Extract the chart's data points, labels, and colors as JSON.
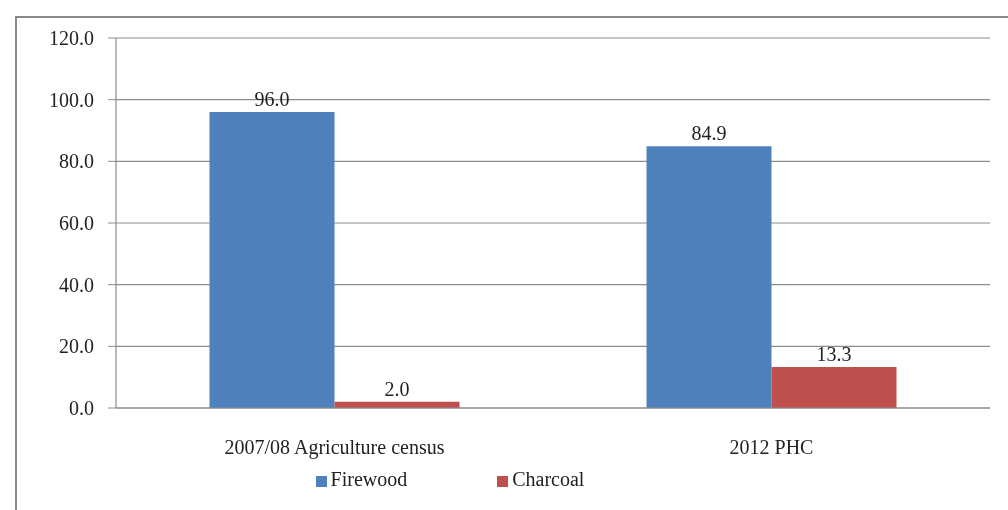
{
  "chart_data": {
    "type": "bar",
    "categories": [
      "2007/08 Agriculture census",
      "2012 PHC"
    ],
    "series": [
      {
        "name": "Firewood",
        "color": "#4f81bd",
        "values": [
          96.0,
          84.9
        ],
        "value_labels": [
          "96.0",
          "84.9"
        ]
      },
      {
        "name": "Charcoal",
        "color": "#c0504d",
        "values": [
          2.0,
          13.3
        ],
        "value_labels": [
          "2.0",
          "13.3"
        ]
      }
    ],
    "ylim": [
      0,
      120
    ],
    "yticks": [
      {
        "value": 0,
        "label": "0.0"
      },
      {
        "value": 20,
        "label": "20.0"
      },
      {
        "value": 40,
        "label": "40.0"
      },
      {
        "value": 60,
        "label": "60.0"
      },
      {
        "value": 80,
        "label": "80.0"
      },
      {
        "value": 100,
        "label": "100.0"
      },
      {
        "value": 120,
        "label": "120.0"
      }
    ],
    "grid": "y",
    "legend": "bottom"
  }
}
